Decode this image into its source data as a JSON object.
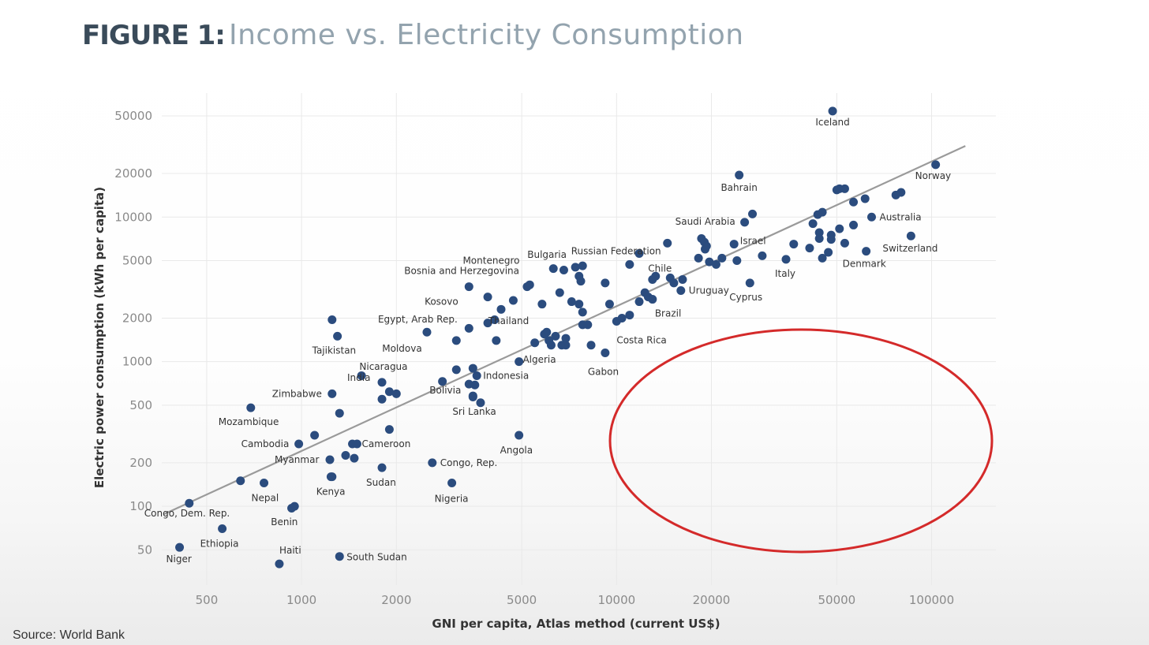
{
  "header": {
    "title_lead": "FIGURE 1:",
    "title_rest": "Income vs. Electricity Consumption"
  },
  "footer": {
    "source": "Source: World Bank"
  },
  "chart_data": {
    "type": "scatter",
    "title": "FIGURE 1: Income vs. Electricity Consumption",
    "xlabel": "GNI per capita, Atlas method (current US$)",
    "ylabel": "Electric power consumption (kWh per capita)",
    "x_scale": "log",
    "y_scale": "log",
    "xlim": [
      360,
      160000
    ],
    "ylim": [
      30,
      72000
    ],
    "x_ticks": [
      500,
      1000,
      2000,
      5000,
      10000,
      20000,
      50000,
      100000
    ],
    "x_tick_labels": [
      "500",
      "1000",
      "2000",
      "5000",
      "10000",
      "20000",
      "50000",
      "100000"
    ],
    "y_ticks": [
      50,
      100,
      200,
      500,
      1000,
      2000,
      5000,
      10000,
      20000,
      50000
    ],
    "y_tick_labels": [
      "50",
      "100",
      "200",
      "500",
      "1000",
      "2000",
      "5000",
      "10000",
      "20000",
      "50000"
    ],
    "grid": true,
    "marker_color": "#2b4c7e",
    "trendline": {
      "color": "#9a9a9a",
      "x": [
        365,
        128000
      ],
      "y": [
        88,
        31000
      ]
    },
    "annotation_ellipse": {
      "color": "#d42a2a",
      "center": [
        29500,
        260
      ],
      "note": "red circle drawn over empty high-income, low-consumption region"
    },
    "points": [
      {
        "label": "Iceland",
        "x": 48500,
        "y": 54000
      },
      {
        "label": "Norway",
        "x": 103000,
        "y": 23000
      },
      {
        "label": "Bahrain",
        "x": 24500,
        "y": 19500
      },
      {
        "label": "Australia",
        "x": 64500,
        "y": 10000
      },
      {
        "label": "Saudi Arabia",
        "x": 25500,
        "y": 9200
      },
      {
        "label": "Russian Federation",
        "x": 14500,
        "y": 6600
      },
      {
        "label": "Bulgaria",
        "x": 7800,
        "y": 4600
      },
      {
        "label": "Montenegro",
        "x": 6800,
        "y": 4300
      },
      {
        "label": "Chile",
        "x": 14800,
        "y": 3800
      },
      {
        "label": "Israel",
        "x": 36500,
        "y": 6500
      },
      {
        "label": "Switzerland",
        "x": 86000,
        "y": 7400
      },
      {
        "label": "Denmark",
        "x": 62000,
        "y": 5800
      },
      {
        "label": "Italy",
        "x": 34500,
        "y": 5100
      },
      {
        "label": "Uruguay",
        "x": 16000,
        "y": 3100
      },
      {
        "label": "Cyprus",
        "x": 26500,
        "y": 3500
      },
      {
        "label": "Bosnia and Herzegovina",
        "x": 3400,
        "y": 3300
      },
      {
        "label": "Kosovo",
        "x": 3900,
        "y": 2800
      },
      {
        "label": "Egypt, Arab Rep.",
        "x": 2500,
        "y": 1600
      },
      {
        "label": "Thailand",
        "x": 6000,
        "y": 1600
      },
      {
        "label": "Brazil",
        "x": 11000,
        "y": 2100
      },
      {
        "label": "Costa Rica",
        "x": 10000,
        "y": 1900
      },
      {
        "label": "Tajikistan",
        "x": 1300,
        "y": 1500
      },
      {
        "label": "Moldova",
        "x": 3100,
        "y": 1400
      },
      {
        "label": "Algeria",
        "x": 6200,
        "y": 1300
      },
      {
        "label": "Gabon",
        "x": 9200,
        "y": 1150
      },
      {
        "label": "Indonesia",
        "x": 3600,
        "y": 800
      },
      {
        "label": "India",
        "x": 1800,
        "y": 720
      },
      {
        "label": "Bolivia",
        "x": 3400,
        "y": 700
      },
      {
        "label": "Zimbabwe",
        "x": 1250,
        "y": 600
      },
      {
        "label": "Nicaragua",
        "x": 1900,
        "y": 620
      },
      {
        "label": "Sri Lanka",
        "x": 3500,
        "y": 580
      },
      {
        "label": "Mozambique",
        "x": 690,
        "y": 480
      },
      {
        "label": "Angola",
        "x": 4900,
        "y": 310
      },
      {
        "label": "Cambodia",
        "x": 980,
        "y": 270
      },
      {
        "label": "Cameroon",
        "x": 1450,
        "y": 270
      },
      {
        "label": "Myanmar",
        "x": 1230,
        "y": 210
      },
      {
        "label": "Congo, Rep.",
        "x": 2600,
        "y": 200
      },
      {
        "label": "Sudan",
        "x": 1800,
        "y": 185
      },
      {
        "label": "Kenya",
        "x": 1250,
        "y": 160
      },
      {
        "label": "Nepal",
        "x": 760,
        "y": 145
      },
      {
        "label": "Nigeria",
        "x": 3000,
        "y": 145
      },
      {
        "label": "Congo, Dem. Rep.",
        "x": 440,
        "y": 105
      },
      {
        "label": "Benin",
        "x": 950,
        "y": 100
      },
      {
        "label": "Ethiopia",
        "x": 560,
        "y": 70
      },
      {
        "label": "Niger",
        "x": 410,
        "y": 52
      },
      {
        "label": "Haiti",
        "x": 850,
        "y": 40
      },
      {
        "label": "South Sudan",
        "x": 1320,
        "y": 45
      },
      {
        "label": "",
        "x": 1250,
        "y": 1950
      },
      {
        "label": "",
        "x": 1550,
        "y": 800
      },
      {
        "label": "",
        "x": 2000,
        "y": 600
      },
      {
        "label": "",
        "x": 1800,
        "y": 550
      },
      {
        "label": "",
        "x": 1320,
        "y": 440
      },
      {
        "label": "",
        "x": 1100,
        "y": 310
      },
      {
        "label": "",
        "x": 1380,
        "y": 225
      },
      {
        "label": "",
        "x": 1500,
        "y": 270
      },
      {
        "label": "",
        "x": 1470,
        "y": 215
      },
      {
        "label": "",
        "x": 640,
        "y": 150
      },
      {
        "label": "",
        "x": 1240,
        "y": 160
      },
      {
        "label": "",
        "x": 930,
        "y": 97
      },
      {
        "label": "",
        "x": 1900,
        "y": 340
      },
      {
        "label": "",
        "x": 2800,
        "y": 730
      },
      {
        "label": "",
        "x": 3100,
        "y": 880
      },
      {
        "label": "",
        "x": 3500,
        "y": 900
      },
      {
        "label": "",
        "x": 3550,
        "y": 690
      },
      {
        "label": "",
        "x": 3500,
        "y": 570
      },
      {
        "label": "",
        "x": 3700,
        "y": 520
      },
      {
        "label": "",
        "x": 3400,
        "y": 1700
      },
      {
        "label": "",
        "x": 3900,
        "y": 1850
      },
      {
        "label": "",
        "x": 4100,
        "y": 1950
      },
      {
        "label": "",
        "x": 4300,
        "y": 2300
      },
      {
        "label": "",
        "x": 4700,
        "y": 2650
      },
      {
        "label": "",
        "x": 4150,
        "y": 1400
      },
      {
        "label": "",
        "x": 4900,
        "y": 1000
      },
      {
        "label": "",
        "x": 5300,
        "y": 3400
      },
      {
        "label": "",
        "x": 5200,
        "y": 3300
      },
      {
        "label": "",
        "x": 5800,
        "y": 2500
      },
      {
        "label": "",
        "x": 5500,
        "y": 1350
      },
      {
        "label": "",
        "x": 6100,
        "y": 1400
      },
      {
        "label": "",
        "x": 5900,
        "y": 1550
      },
      {
        "label": "",
        "x": 6400,
        "y": 1500
      },
      {
        "label": "",
        "x": 6700,
        "y": 1300
      },
      {
        "label": "",
        "x": 6900,
        "y": 1450
      },
      {
        "label": "",
        "x": 6900,
        "y": 1300
      },
      {
        "label": "",
        "x": 6300,
        "y": 4400
      },
      {
        "label": "",
        "x": 7200,
        "y": 2600
      },
      {
        "label": "",
        "x": 7600,
        "y": 2500
      },
      {
        "label": "",
        "x": 7800,
        "y": 2200
      },
      {
        "label": "",
        "x": 7600,
        "y": 3900
      },
      {
        "label": "",
        "x": 7700,
        "y": 3600
      },
      {
        "label": "",
        "x": 7400,
        "y": 4500
      },
      {
        "label": "",
        "x": 7800,
        "y": 1800
      },
      {
        "label": "",
        "x": 8100,
        "y": 1800
      },
      {
        "label": "",
        "x": 6600,
        "y": 3000
      },
      {
        "label": "",
        "x": 8300,
        "y": 1300
      },
      {
        "label": "",
        "x": 9200,
        "y": 3500
      },
      {
        "label": "",
        "x": 9500,
        "y": 2500
      },
      {
        "label": "",
        "x": 10400,
        "y": 2000
      },
      {
        "label": "",
        "x": 11000,
        "y": 4700
      },
      {
        "label": "",
        "x": 11800,
        "y": 5600
      },
      {
        "label": "",
        "x": 11800,
        "y": 2600
      },
      {
        "label": "",
        "x": 12300,
        "y": 3000
      },
      {
        "label": "",
        "x": 12600,
        "y": 2800
      },
      {
        "label": "",
        "x": 13000,
        "y": 2700
      },
      {
        "label": "",
        "x": 13000,
        "y": 3700
      },
      {
        "label": "",
        "x": 13300,
        "y": 3900
      },
      {
        "label": "",
        "x": 15200,
        "y": 3500
      },
      {
        "label": "",
        "x": 16200,
        "y": 3700
      },
      {
        "label": "",
        "x": 18200,
        "y": 5200
      },
      {
        "label": "",
        "x": 18600,
        "y": 7100
      },
      {
        "label": "",
        "x": 19000,
        "y": 6700
      },
      {
        "label": "",
        "x": 19300,
        "y": 6300
      },
      {
        "label": "",
        "x": 19100,
        "y": 6000
      },
      {
        "label": "",
        "x": 19700,
        "y": 4900
      },
      {
        "label": "",
        "x": 20700,
        "y": 4700
      },
      {
        "label": "",
        "x": 21600,
        "y": 5200
      },
      {
        "label": "",
        "x": 23600,
        "y": 6500
      },
      {
        "label": "",
        "x": 24100,
        "y": 5000
      },
      {
        "label": "",
        "x": 27000,
        "y": 10500
      },
      {
        "label": "",
        "x": 29000,
        "y": 5400
      },
      {
        "label": "",
        "x": 41000,
        "y": 6100
      },
      {
        "label": "",
        "x": 42000,
        "y": 9000
      },
      {
        "label": "",
        "x": 43500,
        "y": 10400
      },
      {
        "label": "",
        "x": 45000,
        "y": 10800
      },
      {
        "label": "",
        "x": 44000,
        "y": 7800
      },
      {
        "label": "",
        "x": 44000,
        "y": 7100
      },
      {
        "label": "",
        "x": 45000,
        "y": 5200
      },
      {
        "label": "",
        "x": 47000,
        "y": 5700
      },
      {
        "label": "",
        "x": 48000,
        "y": 7500
      },
      {
        "label": "",
        "x": 48000,
        "y": 7000
      },
      {
        "label": "",
        "x": 50000,
        "y": 15400
      },
      {
        "label": "",
        "x": 51000,
        "y": 15700
      },
      {
        "label": "",
        "x": 53000,
        "y": 15700
      },
      {
        "label": "",
        "x": 51000,
        "y": 8300
      },
      {
        "label": "",
        "x": 53000,
        "y": 6600
      },
      {
        "label": "",
        "x": 56500,
        "y": 12700
      },
      {
        "label": "",
        "x": 56500,
        "y": 8800
      },
      {
        "label": "",
        "x": 61500,
        "y": 13400
      },
      {
        "label": "",
        "x": 77000,
        "y": 14200
      },
      {
        "label": "",
        "x": 80000,
        "y": 14800
      }
    ]
  }
}
